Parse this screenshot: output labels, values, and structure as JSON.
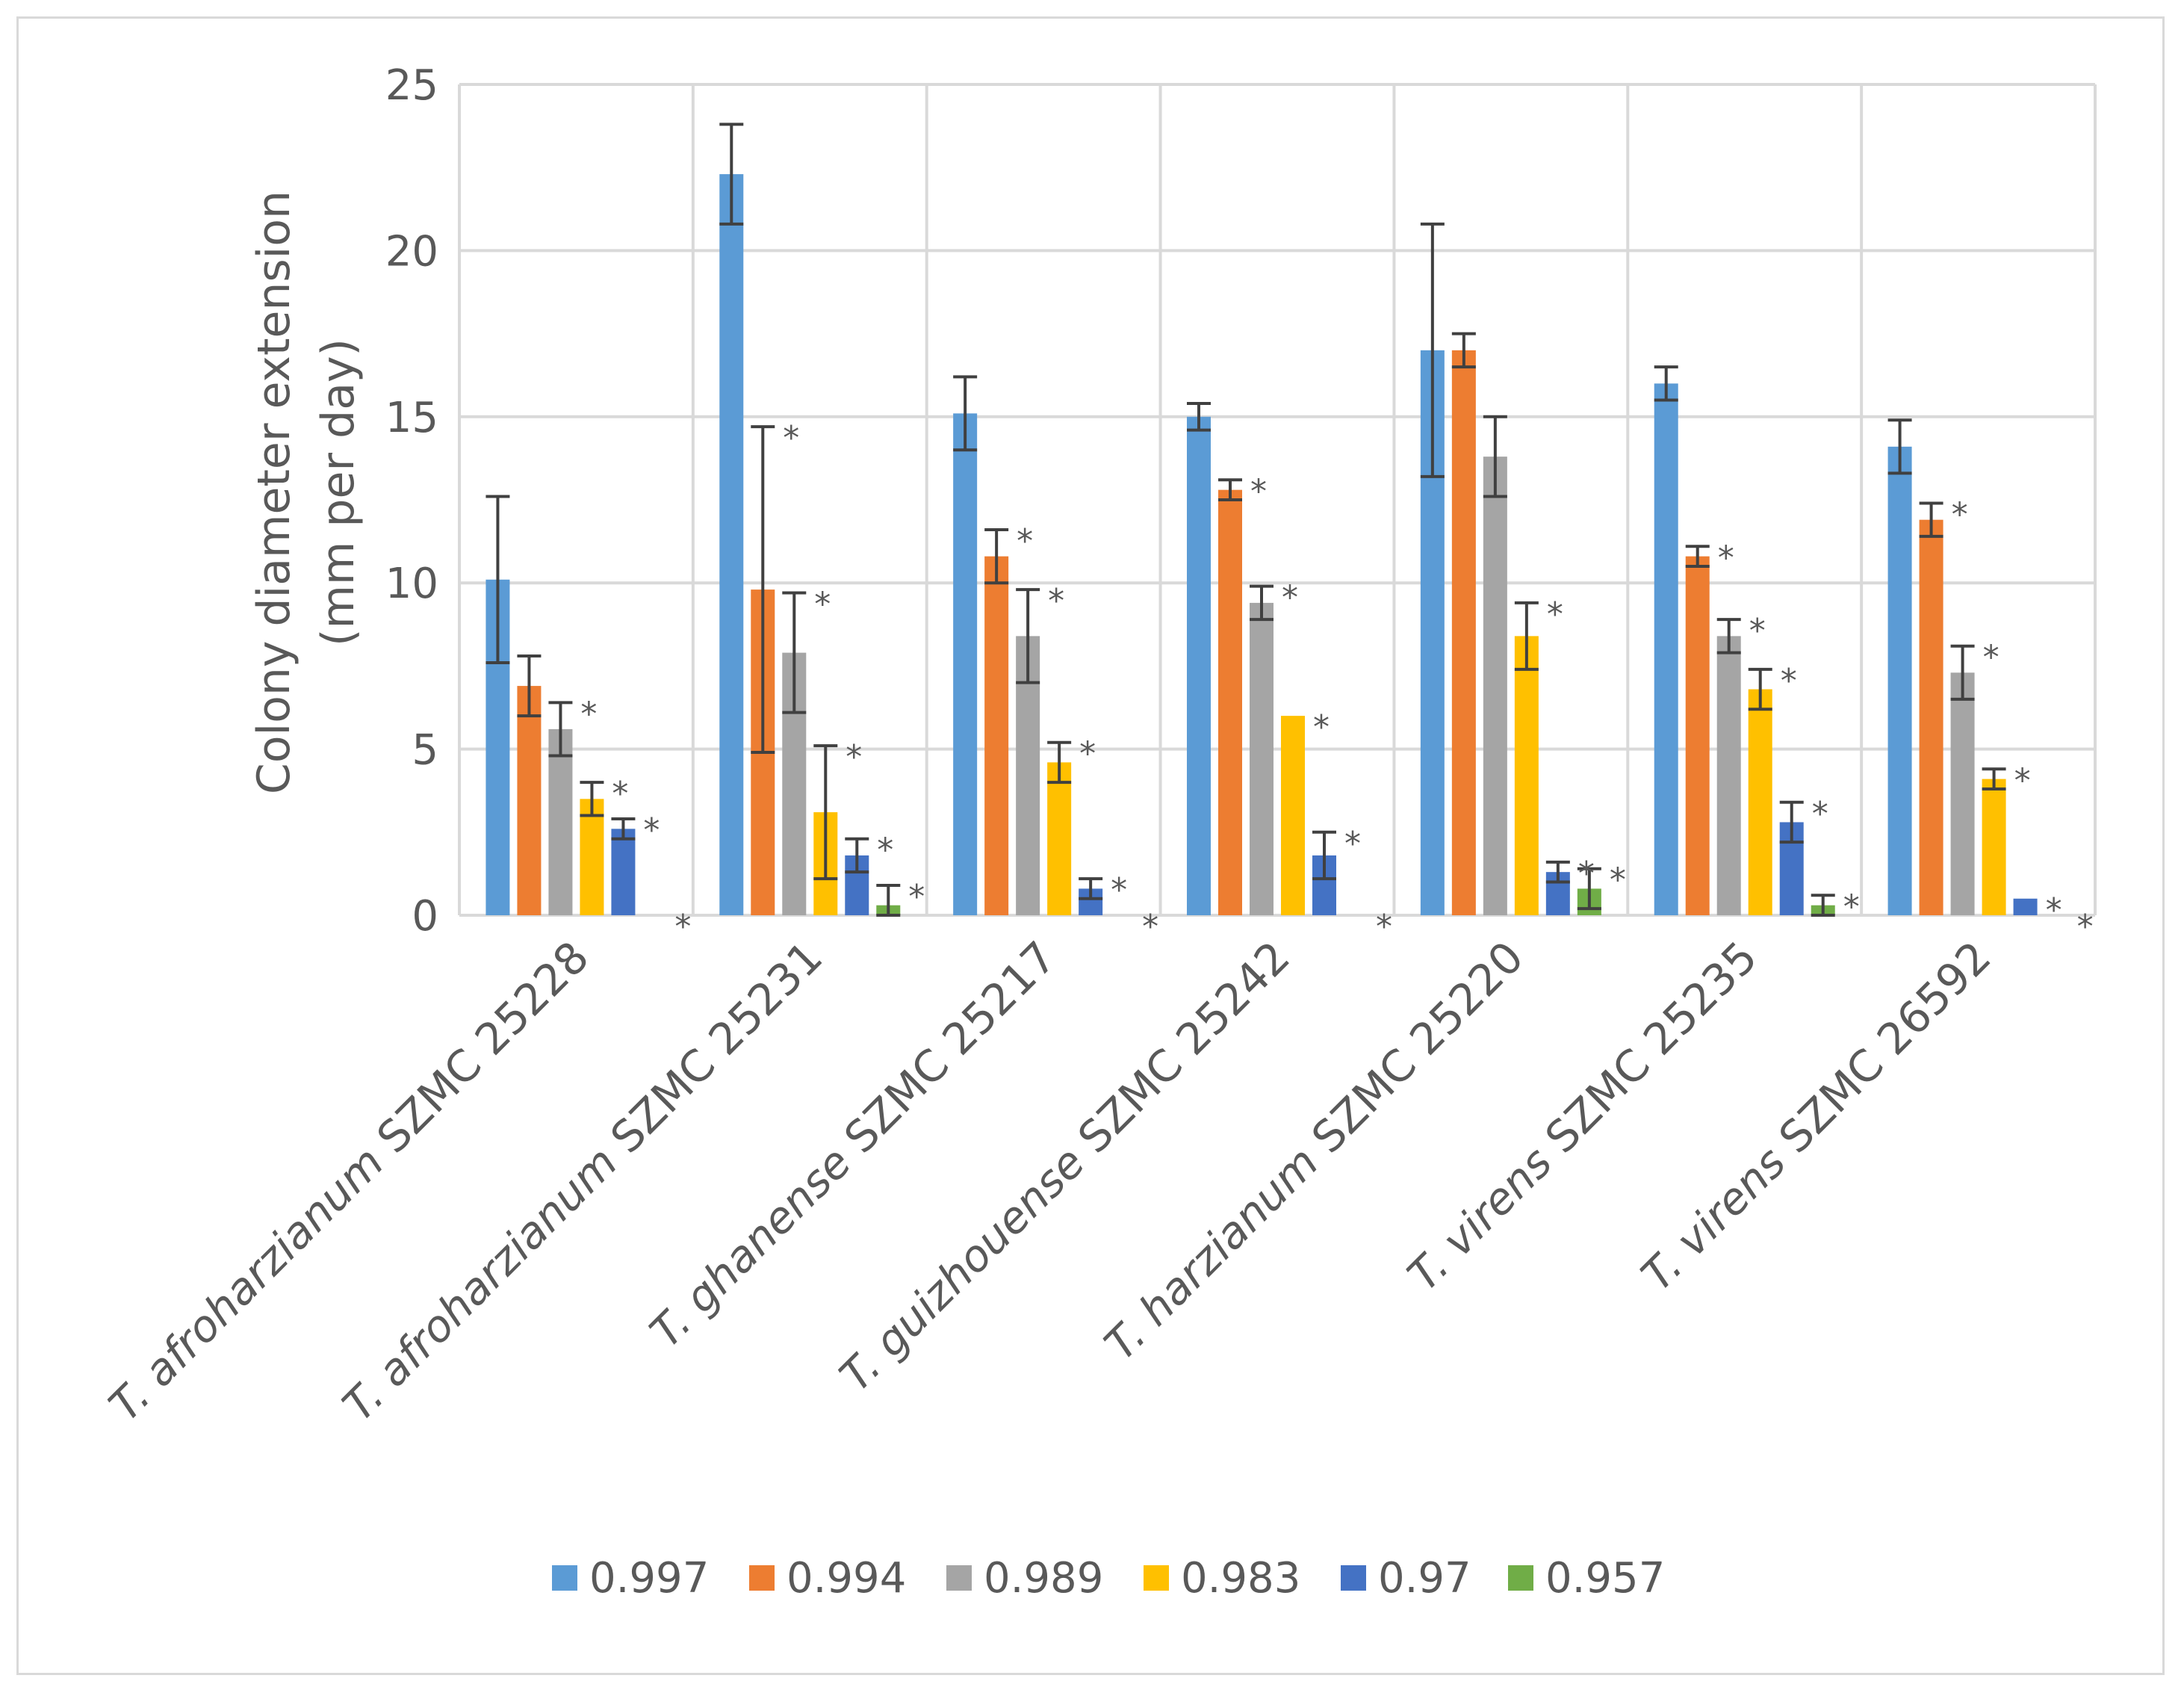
{
  "chart_data": {
    "type": "bar",
    "title": "",
    "ylabel": [
      "Colony diameter extension",
      "(mm per day)"
    ],
    "xlabel": "",
    "ylim": [
      0,
      25
    ],
    "yticks": [
      0,
      5,
      10,
      15,
      20,
      25
    ],
    "ytick_labels": [
      "0",
      "5",
      "10",
      "15",
      "20",
      "25"
    ],
    "grid": true,
    "legend_position": "bottom",
    "categories": [
      {
        "species": "T. afroharzianum",
        "strain": "SZMC 25228"
      },
      {
        "species": "T. afroharzianum",
        "strain": "SZMC 25231"
      },
      {
        "species": "T. ghanense",
        "strain": "SZMC 25217"
      },
      {
        "species": "T. guizhouense",
        "strain": "SZMC 25242"
      },
      {
        "species": "T. harzianum",
        "strain": "SZMC 25220"
      },
      {
        "species": "T. virens",
        "strain": "SZMC 25235"
      },
      {
        "species": "T. virens",
        "strain": "SZMC 26592"
      }
    ],
    "significance_marker": "*",
    "series": [
      {
        "name": "0.997",
        "color": "#5B9BD5",
        "values": [
          10.1,
          22.3,
          15.1,
          15.0,
          17.0,
          16.0,
          14.1
        ],
        "errors": [
          2.5,
          1.5,
          1.1,
          0.4,
          3.8,
          0.5,
          0.8
        ],
        "significant": [
          false,
          false,
          false,
          false,
          false,
          false,
          false
        ]
      },
      {
        "name": "0.994",
        "color": "#ED7D31",
        "values": [
          6.9,
          9.8,
          10.8,
          12.8,
          17.0,
          10.8,
          11.9
        ],
        "errors": [
          0.9,
          4.9,
          0.8,
          0.3,
          0.5,
          0.3,
          0.5
        ],
        "significant": [
          false,
          true,
          true,
          true,
          false,
          true,
          true
        ]
      },
      {
        "name": "0.989",
        "color": "#A5A5A5",
        "values": [
          5.6,
          7.9,
          8.4,
          9.4,
          13.8,
          8.4,
          7.3
        ],
        "errors": [
          0.8,
          1.8,
          1.4,
          0.5,
          1.2,
          0.5,
          0.8
        ],
        "significant": [
          true,
          true,
          true,
          true,
          false,
          true,
          true
        ]
      },
      {
        "name": "0.983",
        "color": "#FFC000",
        "values": [
          3.5,
          3.1,
          4.6,
          6.0,
          8.4,
          6.8,
          4.1
        ],
        "errors": [
          0.5,
          2.0,
          0.6,
          0.0,
          1.0,
          0.6,
          0.3
        ],
        "significant": [
          true,
          true,
          true,
          true,
          true,
          true,
          true
        ]
      },
      {
        "name": "0.97",
        "color": "#4472C4",
        "values": [
          2.6,
          1.8,
          0.8,
          1.8,
          1.3,
          2.8,
          0.5
        ],
        "errors": [
          0.3,
          0.5,
          0.3,
          0.7,
          0.3,
          0.6,
          0.0
        ],
        "significant": [
          true,
          true,
          true,
          true,
          true,
          true,
          true
        ]
      },
      {
        "name": "0.957",
        "color": "#70AD47",
        "values": [
          0.0,
          0.3,
          0.0,
          0.0,
          0.8,
          0.3,
          0.0
        ],
        "errors": [
          0.0,
          0.6,
          0.0,
          0.0,
          0.6,
          0.3,
          0.0
        ],
        "significant": [
          true,
          true,
          true,
          true,
          true,
          true,
          true
        ]
      }
    ]
  }
}
